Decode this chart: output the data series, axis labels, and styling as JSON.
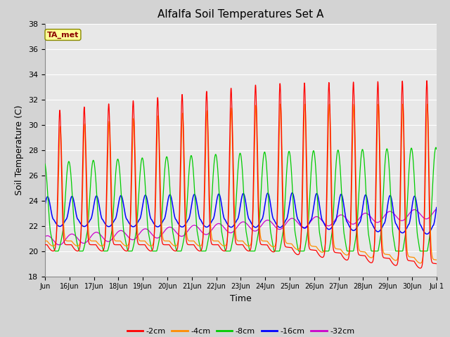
{
  "title": "Alfalfa Soil Temperatures Set A",
  "xlabel": "Time",
  "ylabel": "Soil Temperature (C)",
  "ylim": [
    18,
    38
  ],
  "yticks": [
    18,
    20,
    22,
    24,
    26,
    28,
    30,
    32,
    34,
    36,
    38
  ],
  "annotation": "TA_met",
  "annotation_color": "#8B0000",
  "annotation_bg": "#FFFF99",
  "background_color": "#D3D3D3",
  "plot_bg": "#E8E8E8",
  "series_colors": {
    "-2cm": "#FF0000",
    "-4cm": "#FF8C00",
    "-8cm": "#00CC00",
    "-16cm": "#0000FF",
    "-32cm": "#CC00CC"
  },
  "legend_labels": [
    "-2cm",
    "-4cm",
    "-8cm",
    "-16cm",
    "-32cm"
  ],
  "num_days": 16,
  "start_day": 15,
  "points_per_day": 144
}
